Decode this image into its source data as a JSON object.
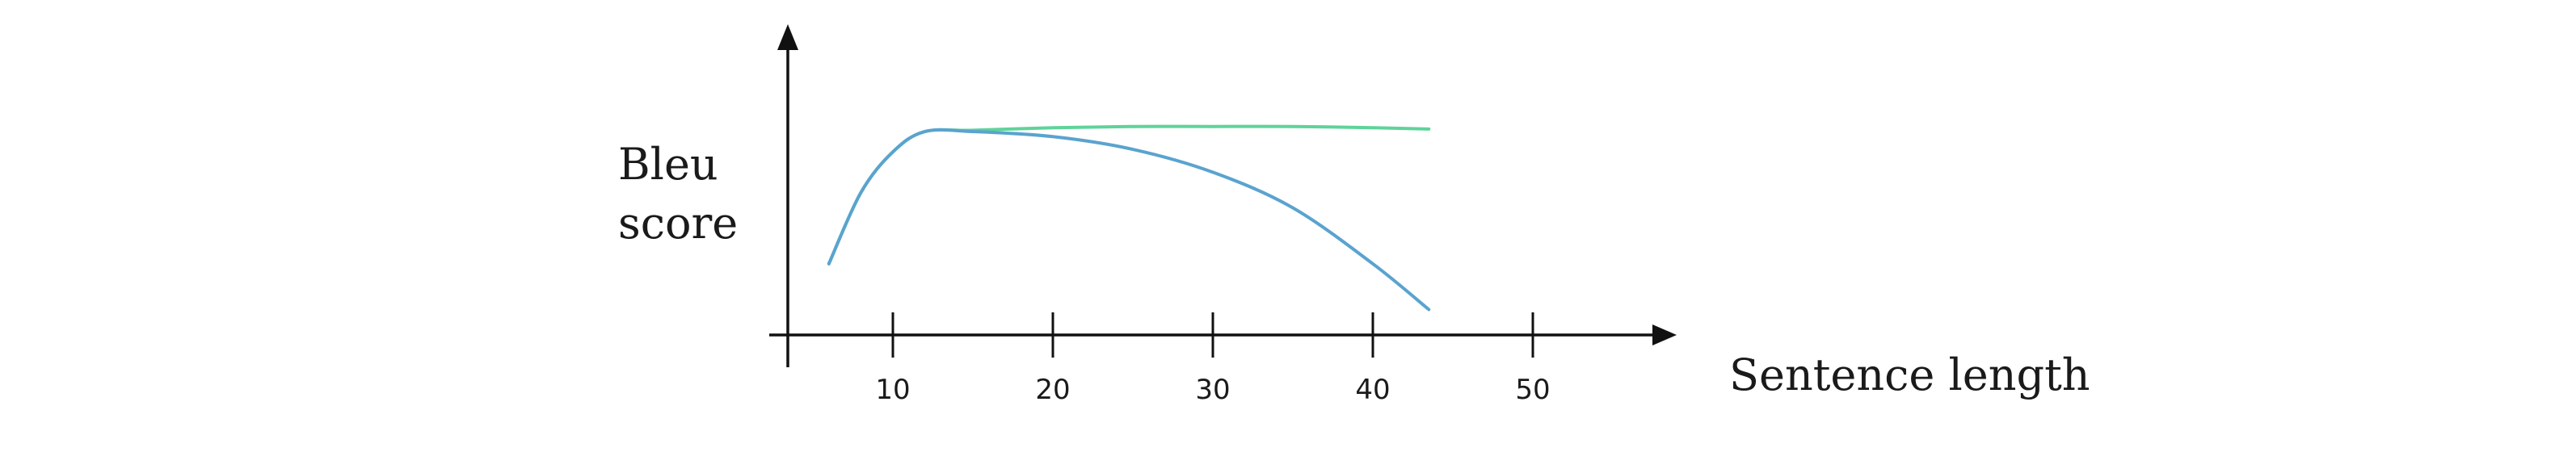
{
  "chart_data": {
    "type": "line",
    "title": "",
    "xlabel": "Sentence length",
    "ylabel_lines": [
      "Bleu",
      "score"
    ],
    "xlim": [
      3,
      53
    ],
    "ylim": [
      0,
      1
    ],
    "x_ticks": [
      10,
      20,
      30,
      40,
      50
    ],
    "y_ticks": [],
    "grid": false,
    "legend": "none",
    "series": [
      {
        "color": "#5fd39a",
        "x": [
          6,
          8,
          10,
          12,
          15,
          20,
          25,
          30,
          35,
          40,
          43.5
        ],
        "y": [
          0.28,
          0.56,
          0.72,
          0.8,
          0.805,
          0.815,
          0.82,
          0.82,
          0.82,
          0.815,
          0.81
        ]
      },
      {
        "color": "#5aa3cf",
        "x": [
          6,
          8,
          10,
          12,
          15,
          20,
          25,
          30,
          35,
          40,
          43.5
        ],
        "y": [
          0.28,
          0.56,
          0.72,
          0.8,
          0.8,
          0.78,
          0.73,
          0.64,
          0.5,
          0.28,
          0.1
        ]
      }
    ]
  }
}
